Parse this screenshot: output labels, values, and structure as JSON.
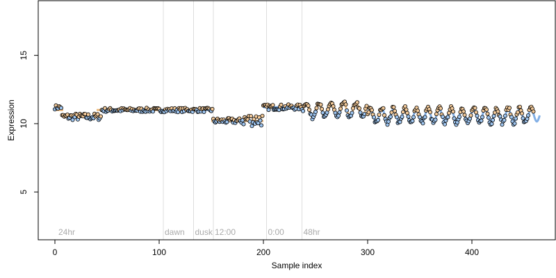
{
  "chart_data": {
    "type": "scatter",
    "xlabel": "Sample index",
    "ylabel": "Expression",
    "xlim": [
      -16,
      480
    ],
    "ylim": [
      1.5,
      19.0
    ],
    "x_ticks": [
      0,
      100,
      200,
      300,
      400
    ],
    "y_ticks": [
      5,
      10,
      15
    ],
    "grid": false,
    "phase_markers": [
      {
        "x": 104,
        "label": "dawn"
      },
      {
        "x": 133,
        "label": "dusk"
      },
      {
        "x": 152,
        "label": "12:00"
      },
      {
        "x": 203,
        "label": "0:00"
      },
      {
        "x": 237,
        "label": "48hr"
      }
    ],
    "corner_label": {
      "x": 2,
      "label": "24hr"
    },
    "series": [
      {
        "kind": "fitted-segments",
        "colors": {
          "low": "#4f8fdb",
          "high": "#e8a85a"
        },
        "segments": [
          {
            "from": 0,
            "to": 8,
            "y": 11.0
          },
          {
            "from": 8,
            "to": 40,
            "y": 10.5
          },
          {
            "from": 40,
            "to": 100,
            "y": 11.0
          },
          {
            "from": 100,
            "to": 150,
            "y": 11.0
          },
          {
            "from": 150,
            "to": 200,
            "y": 10.2
          },
          {
            "from": 200,
            "to": 240,
            "y": 11.2
          }
        ]
      }
    ],
    "points": {
      "count": 460,
      "stroke": "#000000",
      "fill_low": "#9ec5f0",
      "fill_high": "#f2c999",
      "profile": [
        {
          "from": 0,
          "to": 7,
          "mean": 11.2,
          "amp": 0.15,
          "period": 0
        },
        {
          "from": 7,
          "to": 45,
          "mean": 10.5,
          "amp": 0.25,
          "period": 0
        },
        {
          "from": 45,
          "to": 100,
          "mean": 11.0,
          "amp": 0.15,
          "period": 0
        },
        {
          "from": 100,
          "to": 152,
          "mean": 11.0,
          "amp": 0.15,
          "period": 0
        },
        {
          "from": 152,
          "to": 180,
          "mean": 10.2,
          "amp": 0.2,
          "period": 0
        },
        {
          "from": 180,
          "to": 200,
          "mean": 10.3,
          "amp": 0.5,
          "period": 0
        },
        {
          "from": 200,
          "to": 238,
          "mean": 11.2,
          "amp": 0.2,
          "period": 0
        },
        {
          "from": 238,
          "to": 300,
          "mean": 11.0,
          "amp": 0.55,
          "period": 12
        },
        {
          "from": 300,
          "to": 465,
          "mean": 10.6,
          "amp": 0.55,
          "period": 11
        }
      ]
    }
  }
}
